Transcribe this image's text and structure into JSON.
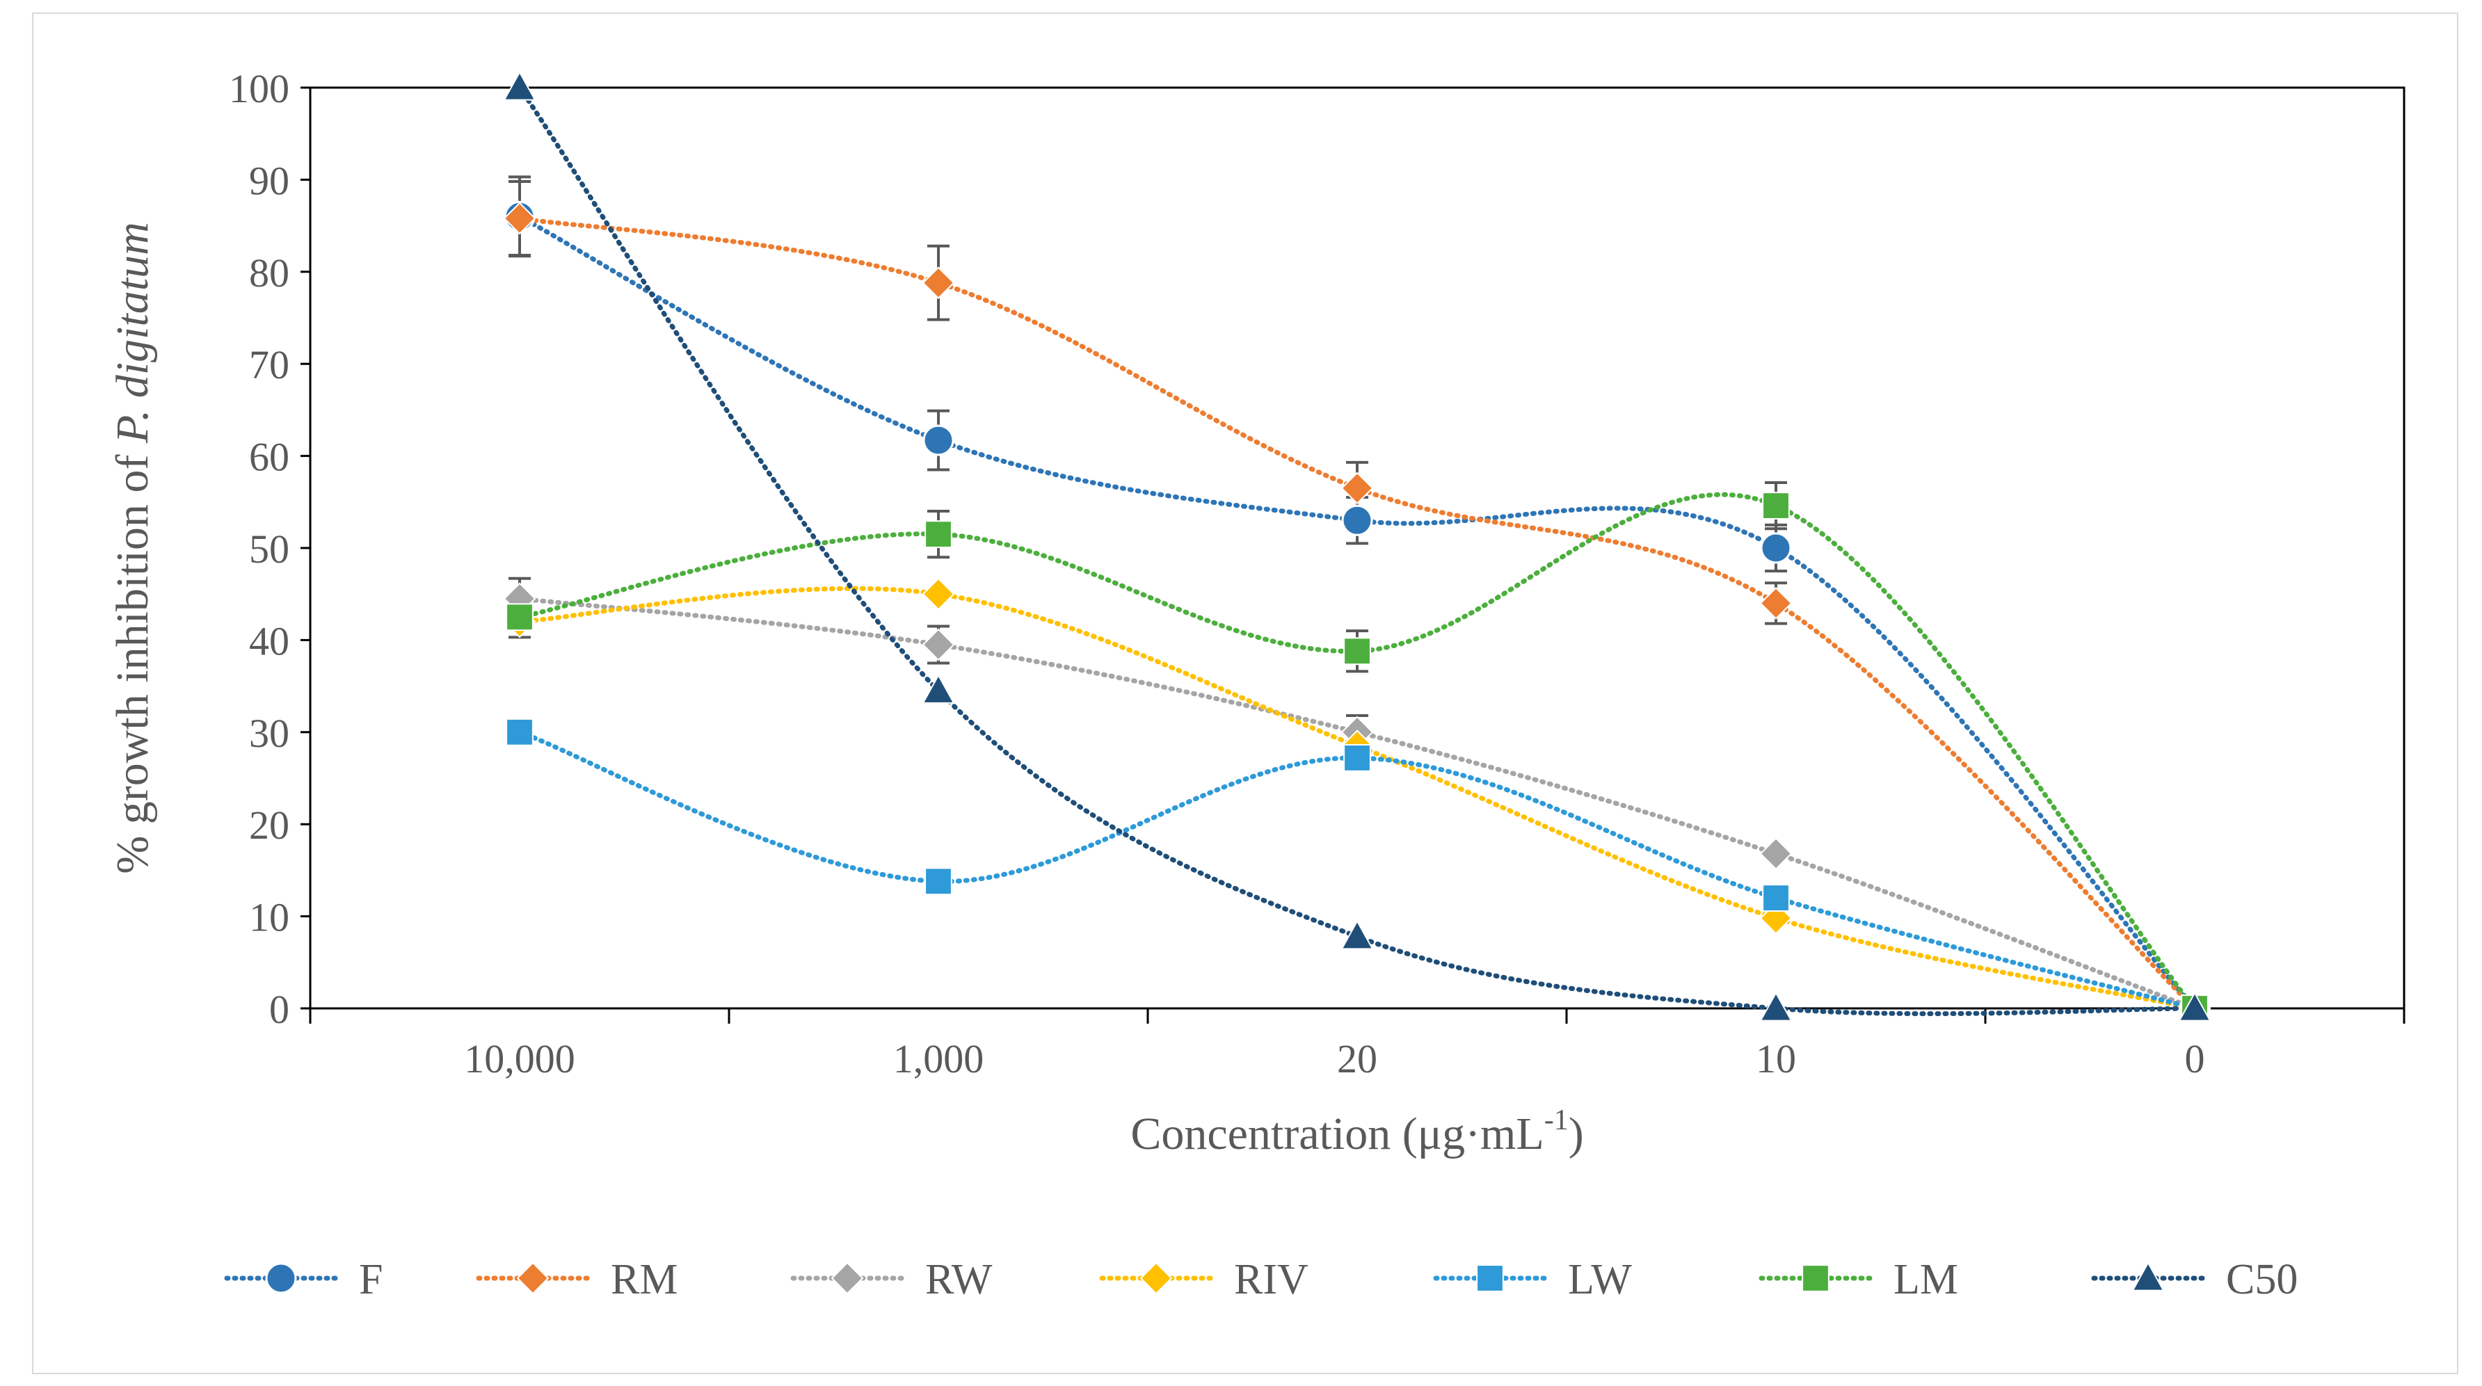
{
  "chart_data": {
    "type": "line",
    "xlabel": "Concentration (μg·mL",
    "xlabel_sup": "-1",
    "xlabel_close": ")",
    "ylabel_prefix": "% growth inhibition of ",
    "ylabel_species": "P. digitatum",
    "categories": [
      "10,000",
      "1,000",
      "20",
      "10",
      "0"
    ],
    "ylim": [
      0,
      100
    ],
    "yticks": [
      "0",
      "10",
      "20",
      "30",
      "40",
      "50",
      "60",
      "70",
      "80",
      "90",
      "100"
    ],
    "legend_position": "bottom",
    "series": [
      {
        "name": "F",
        "color": "#2E75B6",
        "marker": "circle",
        "values": [
          86,
          61.7,
          53,
          50,
          0
        ],
        "errors": [
          4.3,
          3.2,
          2.5,
          2.5,
          0
        ]
      },
      {
        "name": "RM",
        "color": "#ED7D31",
        "marker": "diamond",
        "values": [
          85.8,
          78.8,
          56.5,
          44,
          0
        ],
        "errors": [
          4,
          4,
          2.8,
          2.2,
          0
        ]
      },
      {
        "name": "RW",
        "color": "#A5A5A5",
        "marker": "diamond",
        "values": [
          44.5,
          39.5,
          30,
          16.8,
          0
        ],
        "errors": [
          2.2,
          2,
          1.8,
          0,
          0
        ]
      },
      {
        "name": "RIV",
        "color": "#FFC000",
        "marker": "diamond",
        "values": [
          42,
          45,
          28.5,
          9.8,
          0
        ],
        "errors": [
          0,
          0,
          0,
          0,
          0
        ]
      },
      {
        "name": "LW",
        "color": "#2E9AD8",
        "marker": "square",
        "values": [
          30,
          13.8,
          27.2,
          12,
          0
        ],
        "errors": [
          0,
          0,
          1.3,
          0,
          0
        ]
      },
      {
        "name": "LM",
        "color": "#4CAF3D",
        "marker": "square",
        "values": [
          42.5,
          51.5,
          38.8,
          54.6,
          0
        ],
        "errors": [
          2.2,
          2.5,
          2.2,
          2.5,
          0
        ]
      },
      {
        "name": "C50",
        "color": "#1F4E79",
        "marker": "triangle",
        "values": [
          100,
          34.5,
          7.8,
          0,
          0
        ],
        "errors": [
          0,
          0,
          0,
          0,
          0
        ]
      }
    ]
  }
}
